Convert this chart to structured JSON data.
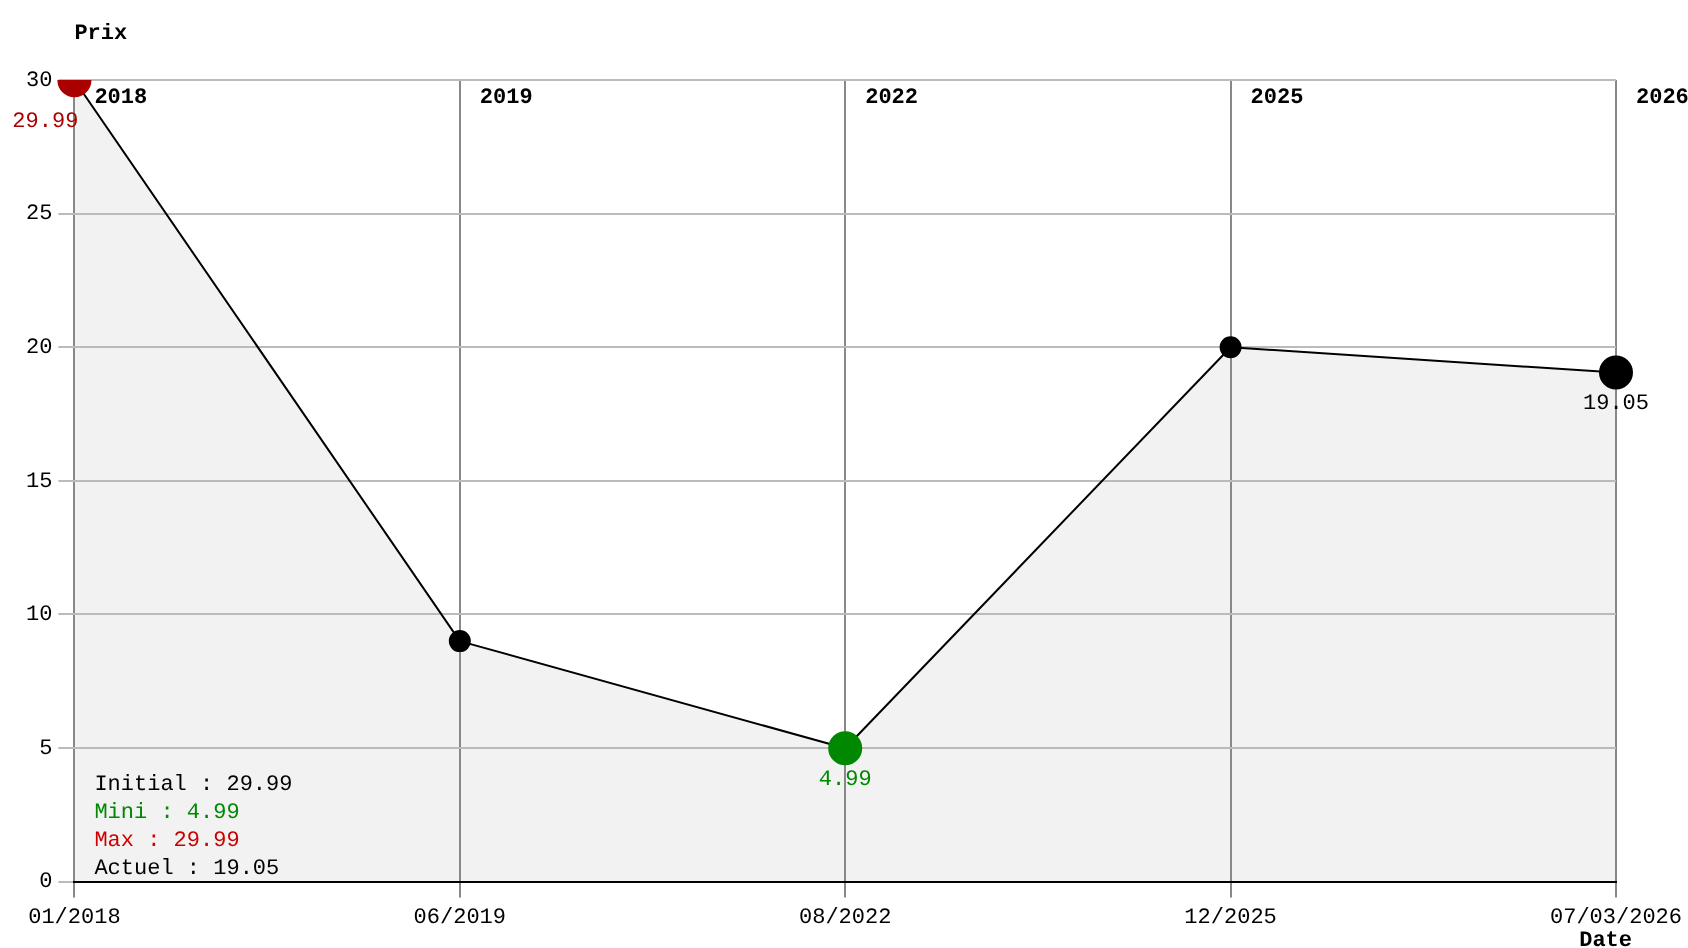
{
  "chart_data": {
    "type": "area",
    "xlabel": "Date",
    "ylabel": "Prix",
    "categories": [
      "01/2018",
      "06/2019",
      "08/2022",
      "12/2025",
      "07/03/2026"
    ],
    "series": [
      {
        "color": "#000000",
        "colors": [
          "#aa0000",
          "#000000",
          "#008800",
          "#000000",
          "#000000"
        ],
        "values": [
          29.99,
          9,
          4.99,
          20,
          19.05
        ],
        "value_labels": [
          "29.99",
          null,
          "4.99",
          null,
          "19.05"
        ]
      }
    ],
    "ylim": [
      0,
      30
    ],
    "yticks": [
      0,
      5,
      10,
      15,
      20,
      25,
      30
    ],
    "grid": true,
    "legend": false,
    "marker": "circle",
    "annotations": [
      "2018",
      "2019",
      "2022",
      "2025",
      "2026",
      "Initial : 29.99",
      "Mini : 4.99",
      "Max : 29.99",
      "Actuel : 19.05"
    ]
  }
}
